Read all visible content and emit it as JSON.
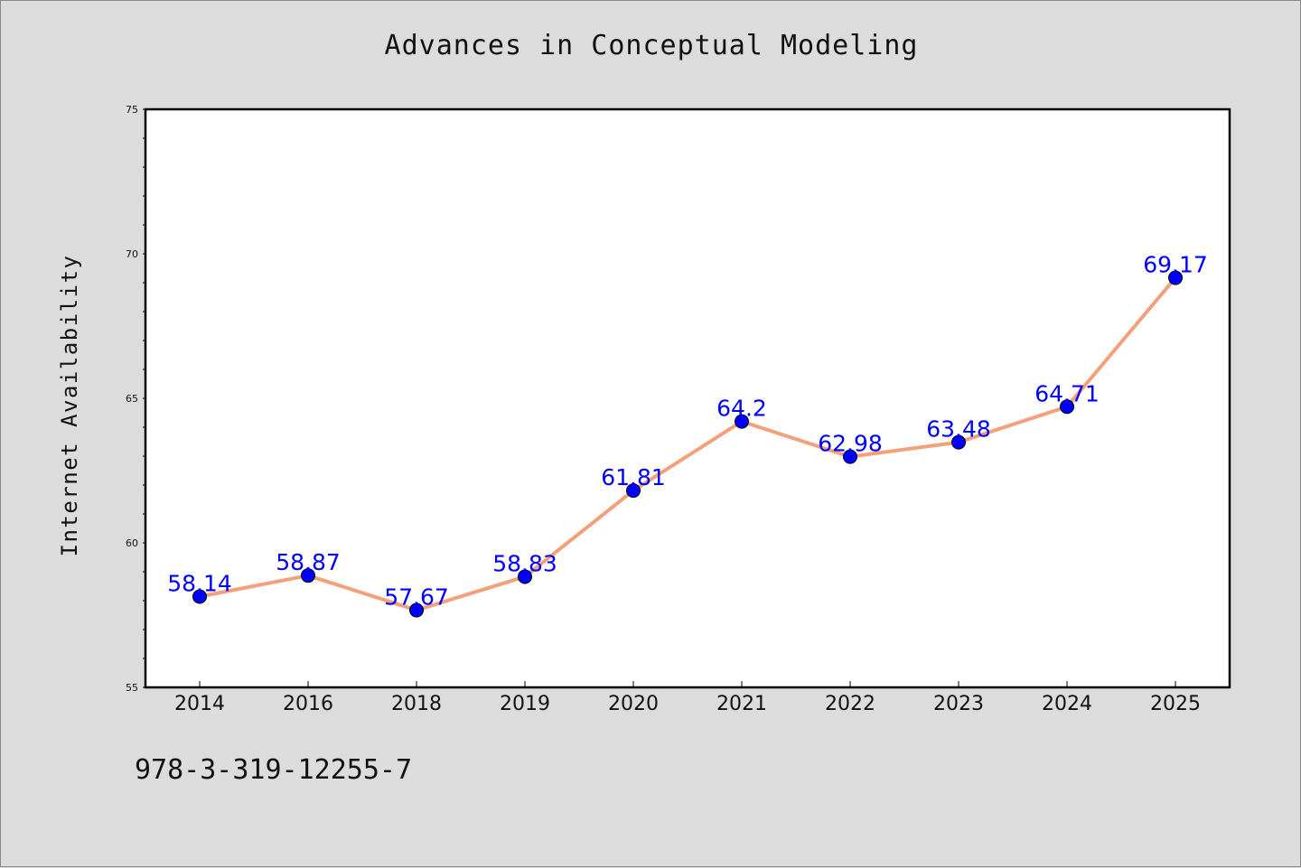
{
  "chart_data": {
    "type": "line",
    "title": "Advances in Conceptual Modeling",
    "xlabel": "",
    "ylabel": "Internet Availability",
    "categories": [
      "2014",
      "2016",
      "2018",
      "2019",
      "2020",
      "2021",
      "2022",
      "2023",
      "2024",
      "2025"
    ],
    "series": [
      {
        "values": [
          58.14,
          58.87,
          57.67,
          58.83,
          61.81,
          64.2,
          62.98,
          63.48,
          64.71,
          69.17
        ],
        "data_labels": [
          "58.14",
          "58.87",
          "57.67",
          "58.83",
          "61.81",
          "64.2",
          "62.98",
          "63.48",
          "64.71",
          "69.17"
        ]
      }
    ],
    "ylim": [
      55,
      75
    ],
    "yticks": [
      "55",
      "60",
      "65",
      "70",
      "75"
    ],
    "grid": false,
    "legend": "none",
    "colors": {
      "line": "#f4a07a",
      "marker": "#0000ff",
      "label": "#0000ff",
      "background": "#dcdcdc",
      "plot_background": "#ffffff"
    }
  },
  "footnote": "978-3-319-12255-7"
}
